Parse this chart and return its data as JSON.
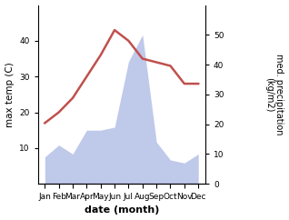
{
  "months": [
    "Jan",
    "Feb",
    "Mar",
    "Apr",
    "May",
    "Jun",
    "Jul",
    "Aug",
    "Sep",
    "Oct",
    "Nov",
    "Dec"
  ],
  "temperature": [
    17,
    20,
    24,
    30,
    36,
    43,
    40,
    35,
    34,
    33,
    28,
    28
  ],
  "precipitation": [
    9,
    13,
    10,
    18,
    18,
    19,
    41,
    50,
    14,
    8,
    7,
    10
  ],
  "temp_color": "#c0504d",
  "precip_color": "#b8c4e8",
  "ylabel_left": "max temp (C)",
  "ylabel_right": "med. precipitation\n(kg/m2)",
  "xlabel": "date (month)",
  "ylim_left": [
    0,
    50
  ],
  "ylim_right": [
    0,
    60
  ],
  "yticks_left": [
    10,
    20,
    30,
    40
  ],
  "yticks_right": [
    0,
    10,
    20,
    30,
    40,
    50
  ],
  "linewidth": 1.8,
  "figsize": [
    3.18,
    2.42
  ],
  "dpi": 100
}
